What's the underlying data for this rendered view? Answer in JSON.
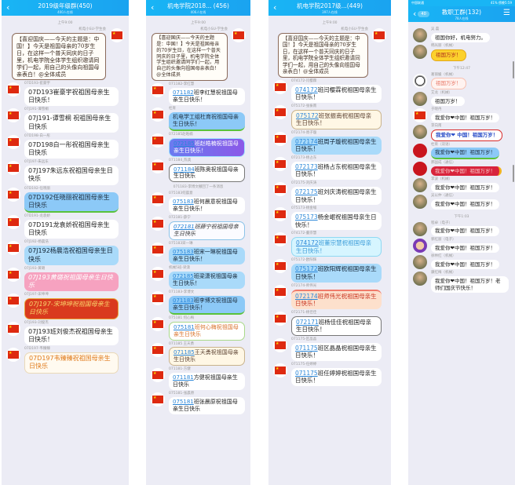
{
  "colors": {
    "header": "#19b5f5",
    "chat_bg": "#ececf5",
    "flag": "#de2910"
  },
  "announcement": "【喜迎国庆——今天的主题是：中国！】今天是祖国母亲的70岁生日，在这样一个普天同庆的日子里，机电学院全体学生组织邀请同学们一起，用自己的头像向祖国母亲表白！@全体成员",
  "panels": [
    {
      "title": "2019级年级群(450)",
      "subtitle": "400人在线",
      "time": "上午9:00",
      "fs": "8px",
      "items": [
        {
          "sender": "机电小SU-学生会",
          "self": true,
          "style": "card",
          "text": "【喜迎国庆——今天的主题是：中国！】今天是祖国母亲的70岁生日，在这样一个普天同庆的日子里，机电学院全体学生组织邀请同学们一起，用自己的头像向祖国母亲表白！@全体成员"
        },
        {
          "sender": "07D193-崔豪宇",
          "text": "07D193崔豪宇祝祖国母亲生日快乐！"
        },
        {
          "sender": "07J191-谭雪桐",
          "text": "07J191-谭雪桐  祝祖国母亲生日快乐"
        },
        {
          "sender": "07D198-白一彤",
          "text": "07D198白一彤祝祖国母亲生日快乐"
        },
        {
          "sender": "07J197-朱远东",
          "text": "07J197朱远东祝祖国母亲生日快乐"
        },
        {
          "sender": "07D192-任晓丽",
          "style": "blue",
          "text": "07D192任晓丽祝祖国母亲生日快乐"
        },
        {
          "sender": "07D191-龙袁娇",
          "text": "07D191龙袁娇祝祖国母亲生日快乐"
        },
        {
          "sender": "07J192-杨晨浩",
          "style": "lightblue",
          "text": "07J192杨晨浩祝祖国母亲生日快乐"
        },
        {
          "sender": "07J193-黄璐",
          "style": "pink",
          "text": "07J193黄璐祝祖国母亲生日快乐"
        },
        {
          "sender": "07J197-宋坤坤",
          "style": "red",
          "text": "07J197-宋坤坤祝祖国母亲生日快乐"
        },
        {
          "sender": "07J193-刘俊杰",
          "text": "07J193班刘俊杰祝祖国母亲生日快乐！"
        },
        {
          "sender": "07D197-韦臻臻",
          "style": "cream",
          "text": "07D197韦臻臻祝祖国母亲生日快乐"
        }
      ]
    },
    {
      "title": "机电学院2018... (456)",
      "subtitle": "406人在线",
      "time": "上午9:00",
      "fs": "7px",
      "items": [
        {
          "sender": "机电小SU-学生会",
          "self": true,
          "style": "card",
          "text": "【喜迎国庆——今天的主题是：中国！】今天是祖国母亲的70岁生日，在这样一个普天同庆的日子里，机电学院全体学生组织邀请同学们一起，用自己的头像向祖国母亲表白！@全体成员"
        },
        {
          "sender": "071182-李红慧",
          "code": "071182",
          "text": "班李红慧祝祖国母亲生日快乐！"
        },
        {
          "sender": "杜育",
          "style": "blue",
          "text": "机电学工组杜育祝祖国母亲生日快乐！"
        },
        {
          "sender": "072185赵皓楠",
          "style": "purple",
          "code": "072185",
          "text": "班赵皓楠祝祖国母亲生日快乐！"
        },
        {
          "sender": "071184_陈奥",
          "style": "outline",
          "code": "071184",
          "text": "班陈奥祝祖国母亲生日快乐"
        },
        {
          "system": "071183-李博文撤回了一条消息"
        },
        {
          "sender": "075183何晨意",
          "code": "075183",
          "text": "班何晨意祝祖国母亲生日快乐！"
        },
        {
          "sender": "072181-薛宁",
          "style": "outlineblue",
          "code": "072181",
          "text": "班薛宁祝祖国母亲生日快乐"
        },
        {
          "sender": "075183宋一琳",
          "style": "lightblue",
          "code": "075183",
          "text": "班宋一琳祝祖国母亲生日快乐！"
        },
        {
          "sender": "机械5班-梁潇",
          "style": "lightblue",
          "code": "072185",
          "text": "班梁潇祝祖国母亲生日快乐！"
        },
        {
          "sender": "071183-李博文",
          "style": "blue",
          "code": "071183",
          "text": "班李博文祝祖国母亲生日快乐！"
        },
        {
          "sender": "075181 何心梅",
          "style": "green",
          "code": "075181",
          "text": "班何心梅祝祖国母亲生日快乐"
        },
        {
          "sender": "071185 王天勇",
          "style": "tan",
          "code": "071185",
          "text": "王天勇祝祖国母亲生日快乐"
        },
        {
          "sender": "071181-方健",
          "code": "071181",
          "text": "方健祝祖国母亲生日快乐"
        },
        {
          "sender": "075181-张晨原",
          "code": "075181",
          "text": "班张晨原祝祖国母亲生日快乐"
        }
      ]
    },
    {
      "title": "机电学院2017级...(449)",
      "subtitle": "397人在线",
      "time": "上午9:00",
      "fs": "7.5px",
      "items": [
        {
          "sender": "机电小SU-学生会",
          "self": true,
          "style": "card",
          "text": "【喜迎国庆——今天的主题是：中国！】今天是祖国母亲的70岁生日，在这样一个普天同庆的日子里，机电学院全体学生组织邀请同学们一起，用自己的头像向祖国母亲表白！@全体成员"
        },
        {
          "sender": "074172-闫樱霖",
          "code": "074172",
          "text": "班闫樱霖祝祖国母亲生日快乐！"
        },
        {
          "sender": "075172-张振南",
          "style": "tan",
          "code": "075172",
          "text": "班张振南祝祖国母亲生日快乐！"
        },
        {
          "sender": "072174-周子璇",
          "style": "lightblue",
          "code": "072174",
          "text": "班周子璇祝祖国母亲生日快乐！"
        },
        {
          "sender": "072173-杨占东",
          "code": "072173",
          "text": "班杨占东祝祖国母亲生日快乐！"
        },
        {
          "sender": "072175-刘庆涛",
          "code": "072175",
          "text": "班刘庆涛祝祖国母亲生日快乐！"
        },
        {
          "sender": "075173-杨金岷",
          "code": "075173",
          "text": "杨金岷祝祖国母亲生日快乐！"
        },
        {
          "sender": "074172-董宗慧",
          "style": "cyan",
          "code": "074172",
          "text": "班董宗慧祝祖国母亲生日快乐！"
        },
        {
          "sender": "075172-欧阳辉",
          "style": "lightblue",
          "code": "075172",
          "text": "班欧阳辉祝祖国母亲生日快乐！"
        },
        {
          "sender": "072174-师伟光",
          "style": "peach",
          "code": "072174",
          "text": "班师伟光祝祖国母亲生日快乐！"
        },
        {
          "sender": "072171-杨佳佳",
          "style": "outline",
          "code": "072171",
          "text": "班杨佳佳祝祖国母亲生日快乐！"
        },
        {
          "sender": "071175-区晶晶",
          "code": "071175",
          "text": "班区晶晶祝祖国母亲生日快乐！"
        },
        {
          "sender": "071175-任婷婷",
          "code": "071175",
          "text": "班任婷婷祝祖国母亲生日快乐！"
        }
      ]
    },
    {
      "title": "教职工群(132)",
      "subtitle": "78人在线",
      "back_badge": "40",
      "status": {
        "carrier": "中国联通",
        "battery": "41%",
        "clock": "傍晚5:59"
      },
      "fs": "6.5px",
      "items": [
        {
          "sender": "吴 磊",
          "av": "photo",
          "text": "祖国你好，机电努力。"
        },
        {
          "sender": "韩光丽（机械）",
          "av": "photo",
          "style": "yellow",
          "text": "祖国万岁！"
        },
        {
          "time": "下午12:47"
        },
        {
          "sender": "葛丽媛（机械）",
          "av": "panda",
          "style": "pinklight",
          "text": "祖国万岁！"
        },
        {
          "sender": "艾龙（机械）",
          "av": "photo",
          "text": "祖国万岁！"
        },
        {
          "sender": "于晓冉",
          "text": "我爱你❤中国！祖国万岁！"
        },
        {
          "sender": "李向南",
          "av": "photo",
          "style": "xmas",
          "text": "我爱你❤ 中国！祖国万岁！"
        },
        {
          "sender": "杜育（双语）",
          "av": "redc",
          "style": "blue",
          "text": "我爱你❤中国！祖国万岁！"
        },
        {
          "sender": "郝国成（通信）",
          "av": "redc",
          "style": "redfill",
          "text": "我爱你❤中国！祖国万岁！"
        },
        {
          "sender": "李波（机械）",
          "av": "photo",
          "text": "我爱你❤中国！祖国万岁！"
        },
        {
          "sender": "吴以仲（通信）",
          "av": "photo",
          "text": "我爱你❤中国！祖国万岁！"
        },
        {
          "time": "下午1:03"
        },
        {
          "sender": "程卓（电子）",
          "av": "photo",
          "text": "我爱你❤中国！祖国万岁！"
        },
        {
          "sender": "郭红丽（电子）",
          "av": "purp",
          "text": "我爱你❤中国！祖国万岁！"
        },
        {
          "sender": "徐林红（机械）",
          "av": "photo",
          "text": "我爱你❤中国！祖国万岁！"
        },
        {
          "sender": "康红梅（机械）",
          "av": "photo",
          "text": "我爱你❤中国！祖国万岁！老师们国庆节快乐！"
        }
      ]
    }
  ]
}
